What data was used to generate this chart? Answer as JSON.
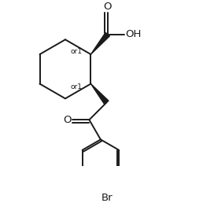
{
  "bg_color": "#ffffff",
  "line_color": "#1a1a1a",
  "line_width": 1.4,
  "font_size": 8.5,
  "figsize": [
    2.58,
    2.58
  ],
  "dpi": 100,
  "xlim": [
    0.05,
    0.95
  ],
  "ylim": [
    0.02,
    0.98
  ]
}
